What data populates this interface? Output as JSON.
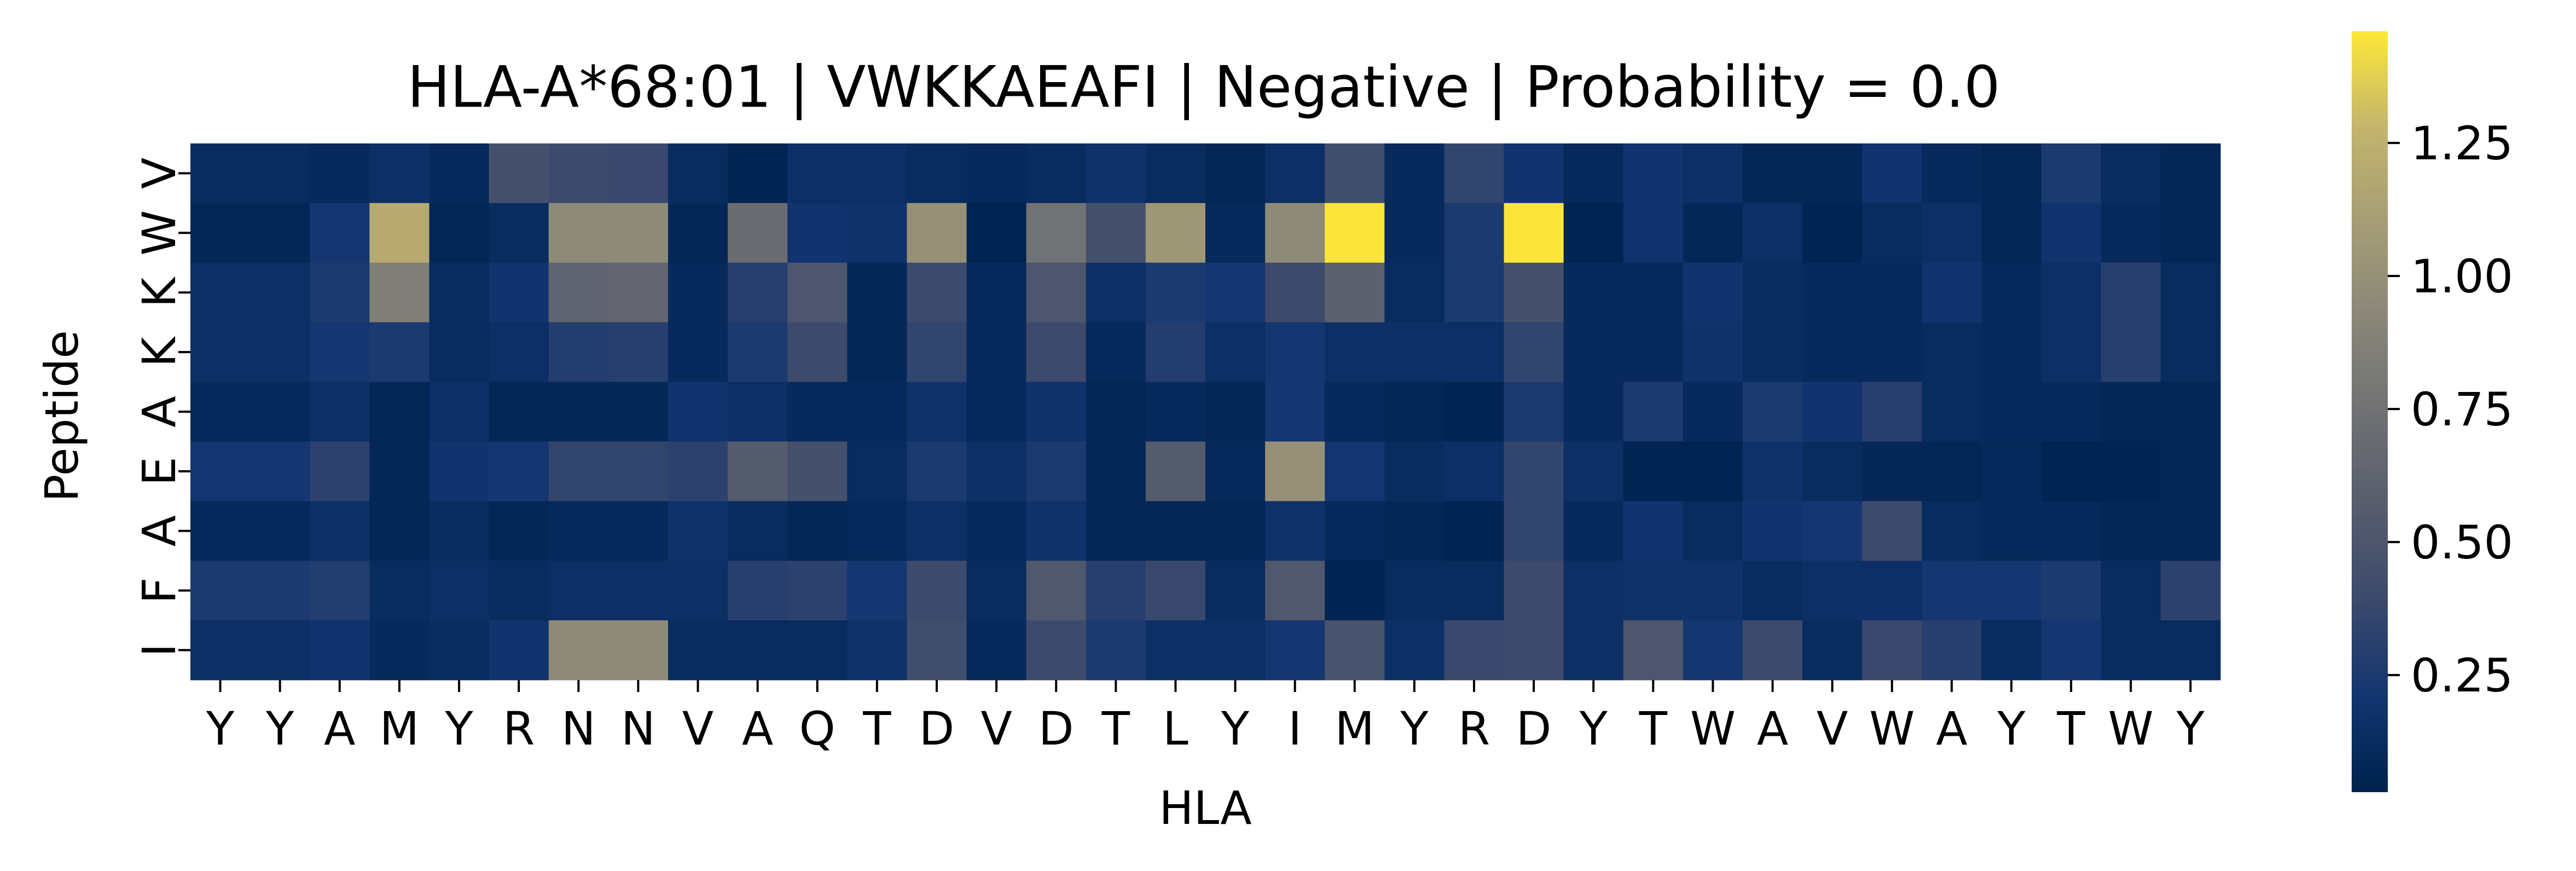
{
  "chart_data": {
    "type": "heatmap",
    "title": "HLA-A*68:01 | VWKKAEAFI | Negative | Probability = 0.0",
    "xlabel": "HLA",
    "ylabel": "Peptide",
    "x_categories": [
      "Y",
      "Y",
      "A",
      "M",
      "Y",
      "R",
      "N",
      "N",
      "V",
      "A",
      "Q",
      "T",
      "D",
      "V",
      "D",
      "T",
      "L",
      "Y",
      "I",
      "M",
      "Y",
      "R",
      "D",
      "Y",
      "T",
      "W",
      "A",
      "V",
      "W",
      "A",
      "Y",
      "T",
      "W",
      "Y"
    ],
    "y_categories": [
      "V",
      "W",
      "K",
      "K",
      "A",
      "E",
      "A",
      "F",
      "I"
    ],
    "colormap": "cividis",
    "colorbar": {
      "range": [
        0.03,
        1.46
      ],
      "ticks": [
        0.25,
        0.5,
        0.75,
        1.0,
        1.25
      ],
      "tick_labels": [
        "0.25",
        "0.50",
        "0.75",
        "1.00",
        "1.25"
      ]
    },
    "grid": false,
    "values": [
      [
        0.12,
        0.12,
        0.1,
        0.15,
        0.1,
        0.45,
        0.4,
        0.38,
        0.12,
        0.05,
        0.15,
        0.15,
        0.12,
        0.1,
        0.12,
        0.18,
        0.12,
        0.08,
        0.15,
        0.42,
        0.1,
        0.35,
        0.2,
        0.1,
        0.2,
        0.15,
        0.08,
        0.08,
        0.2,
        0.1,
        0.08,
        0.25,
        0.12,
        0.08
      ],
      [
        0.08,
        0.08,
        0.22,
        1.2,
        0.08,
        0.12,
        0.95,
        0.95,
        0.08,
        0.7,
        0.2,
        0.18,
        1.0,
        0.05,
        0.75,
        0.45,
        1.05,
        0.1,
        0.95,
        1.45,
        0.1,
        0.25,
        1.45,
        0.05,
        0.2,
        0.08,
        0.15,
        0.05,
        0.12,
        0.15,
        0.08,
        0.2,
        0.1,
        0.08
      ],
      [
        0.15,
        0.15,
        0.25,
        0.85,
        0.12,
        0.2,
        0.62,
        0.65,
        0.1,
        0.3,
        0.5,
        0.08,
        0.4,
        0.1,
        0.5,
        0.15,
        0.25,
        0.22,
        0.4,
        0.6,
        0.12,
        0.25,
        0.45,
        0.1,
        0.1,
        0.2,
        0.12,
        0.1,
        0.1,
        0.2,
        0.1,
        0.15,
        0.3,
        0.12
      ],
      [
        0.15,
        0.15,
        0.22,
        0.25,
        0.12,
        0.15,
        0.28,
        0.3,
        0.1,
        0.25,
        0.4,
        0.08,
        0.35,
        0.1,
        0.4,
        0.1,
        0.28,
        0.15,
        0.22,
        0.15,
        0.15,
        0.15,
        0.35,
        0.1,
        0.1,
        0.18,
        0.12,
        0.1,
        0.1,
        0.12,
        0.1,
        0.15,
        0.3,
        0.12
      ],
      [
        0.1,
        0.1,
        0.15,
        0.08,
        0.15,
        0.08,
        0.08,
        0.08,
        0.2,
        0.15,
        0.1,
        0.1,
        0.18,
        0.1,
        0.18,
        0.08,
        0.1,
        0.08,
        0.22,
        0.1,
        0.08,
        0.05,
        0.25,
        0.1,
        0.25,
        0.1,
        0.25,
        0.2,
        0.3,
        0.12,
        0.1,
        0.1,
        0.08,
        0.08
      ],
      [
        0.22,
        0.22,
        0.32,
        0.08,
        0.2,
        0.22,
        0.35,
        0.35,
        0.32,
        0.55,
        0.45,
        0.12,
        0.25,
        0.15,
        0.25,
        0.08,
        0.55,
        0.1,
        1.0,
        0.22,
        0.12,
        0.15,
        0.35,
        0.15,
        0.05,
        0.05,
        0.18,
        0.12,
        0.08,
        0.08,
        0.1,
        0.05,
        0.05,
        0.08
      ],
      [
        0.1,
        0.1,
        0.15,
        0.08,
        0.12,
        0.08,
        0.1,
        0.1,
        0.18,
        0.12,
        0.08,
        0.1,
        0.15,
        0.1,
        0.18,
        0.08,
        0.08,
        0.08,
        0.18,
        0.1,
        0.08,
        0.05,
        0.35,
        0.1,
        0.2,
        0.12,
        0.2,
        0.22,
        0.4,
        0.12,
        0.1,
        0.1,
        0.08,
        0.08
      ],
      [
        0.25,
        0.25,
        0.28,
        0.12,
        0.15,
        0.12,
        0.15,
        0.15,
        0.15,
        0.3,
        0.32,
        0.22,
        0.4,
        0.12,
        0.52,
        0.3,
        0.38,
        0.12,
        0.52,
        0.05,
        0.12,
        0.12,
        0.4,
        0.15,
        0.18,
        0.18,
        0.12,
        0.15,
        0.15,
        0.22,
        0.22,
        0.25,
        0.12,
        0.32
      ],
      [
        0.15,
        0.15,
        0.2,
        0.1,
        0.12,
        0.2,
        0.95,
        0.95,
        0.12,
        0.12,
        0.12,
        0.18,
        0.42,
        0.1,
        0.4,
        0.25,
        0.15,
        0.15,
        0.22,
        0.48,
        0.15,
        0.38,
        0.4,
        0.15,
        0.5,
        0.22,
        0.4,
        0.12,
        0.38,
        0.3,
        0.12,
        0.22,
        0.12,
        0.12
      ]
    ]
  }
}
